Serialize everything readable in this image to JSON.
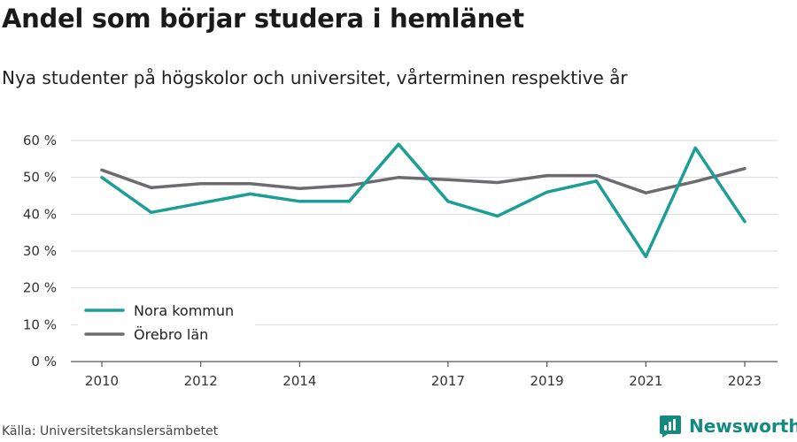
{
  "title": "Andel som börjar studera i hemlänet",
  "subtitle": "Nya studenter på högskolor och universitet, vårterminen respektive år",
  "source": "Källa: Universitetskanslersämbetet",
  "brand": {
    "name": "Newsworthy",
    "icon": "newsworthy-logo-icon",
    "color": "#138a7f"
  },
  "chart_data": {
    "type": "line",
    "x": [
      2010,
      2011,
      2012,
      2013,
      2014,
      2015,
      2016,
      2017,
      2018,
      2019,
      2020,
      2021,
      2022,
      2023
    ],
    "x_tick_labels": [
      "2010",
      "2012",
      "2014",
      "2017",
      "2019",
      "2021",
      "2023"
    ],
    "y_tick_labels": [
      "0 %",
      "10 %",
      "20 %",
      "30 %",
      "40 %",
      "50 %",
      "60 %"
    ],
    "ylim": [
      0,
      60
    ],
    "y_ticks": [
      0,
      10,
      20,
      30,
      40,
      50,
      60
    ],
    "grid": true,
    "legend_position": "bottom-left",
    "series": [
      {
        "name": "Nora kommun",
        "color": "#1a9e96",
        "values": [
          50,
          40.5,
          43,
          45.5,
          43.5,
          43.5,
          59,
          43.5,
          39.5,
          46,
          49,
          28.5,
          58,
          38
        ]
      },
      {
        "name": "Örebro län",
        "color": "#6d6b70",
        "values": [
          52,
          47.2,
          48.3,
          48.3,
          47,
          47.8,
          50,
          49.4,
          48.6,
          50.5,
          50.5,
          45.8,
          48.9,
          52.4
        ]
      }
    ]
  }
}
